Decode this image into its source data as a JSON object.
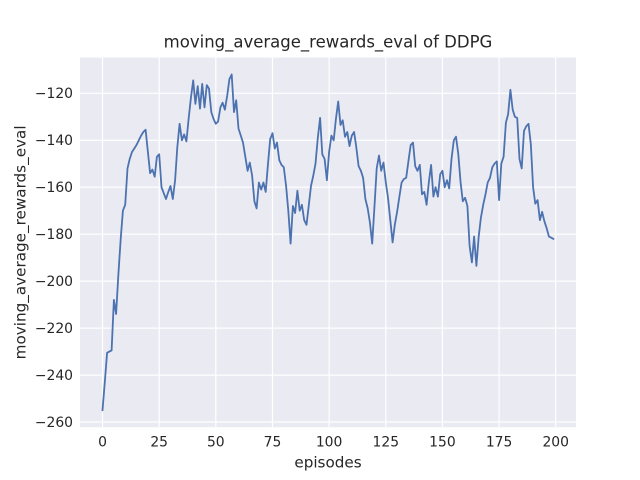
{
  "chart_data": {
    "type": "line",
    "title": "moving_average_rewards_eval of DDPG",
    "xlabel": "episodes",
    "ylabel": "moving_average_rewards_eval",
    "legend": "none",
    "grid": true,
    "xlim": [
      -9.95,
      208.95
    ],
    "ylim": [
      -262.2,
      -104.8
    ],
    "xticks": [
      0,
      25,
      50,
      75,
      100,
      125,
      150,
      175,
      200
    ],
    "yticks": [
      -260,
      -240,
      -220,
      -200,
      -180,
      -160,
      -140,
      -120
    ],
    "colors": {
      "figure_background": "#ffffff",
      "plot_background": "#eaeaf2",
      "grid": "#ffffff",
      "line": "#4c72b0",
      "text": "#262626"
    },
    "x_start": 0,
    "x_step": 1,
    "series": [
      {
        "name": "moving_average_rewards_eval",
        "values": [
          -255,
          -243,
          -230.5,
          -230,
          -229.5,
          -208,
          -214,
          -197,
          -182,
          -170,
          -167.5,
          -152,
          -148,
          -145,
          -143.5,
          -142,
          -140,
          -138,
          -136.5,
          -135.5,
          -145,
          -154,
          -152.5,
          -155.5,
          -147,
          -146,
          -160,
          -162.5,
          -165,
          -162,
          -159.5,
          -165,
          -157,
          -143,
          -133,
          -140,
          -137.5,
          -140.5,
          -131,
          -122,
          -114.5,
          -124.5,
          -117,
          -126.5,
          -116,
          -126,
          -116.5,
          -118,
          -128,
          -131,
          -133,
          -132,
          -126,
          -124,
          -127,
          -121,
          -114,
          -112,
          -128,
          -123,
          -135,
          -138,
          -141,
          -147,
          -153,
          -149.5,
          -155,
          -166,
          -169,
          -158,
          -161,
          -158,
          -162,
          -150,
          -139.5,
          -137,
          -143.5,
          -141,
          -148.5,
          -150.5,
          -151.5,
          -159.5,
          -170,
          -184,
          -168,
          -171,
          -161.5,
          -170,
          -167.5,
          -174,
          -176,
          -168,
          -159.5,
          -155,
          -150,
          -139,
          -130.5,
          -146,
          -148,
          -157,
          -145,
          -138,
          -140,
          -131,
          -123.5,
          -133.5,
          -131.5,
          -138.5,
          -136.5,
          -142.5,
          -138,
          -136.5,
          -143,
          -151,
          -153,
          -156,
          -165,
          -169,
          -175,
          -184,
          -168,
          -152,
          -146.5,
          -153,
          -149.5,
          -158,
          -164.5,
          -174,
          -183.5,
          -176,
          -170.5,
          -164,
          -158,
          -156.5,
          -156,
          -149,
          -142,
          -141,
          -151,
          -153,
          -150.5,
          -163,
          -162,
          -167.5,
          -158,
          -150.5,
          -164,
          -160,
          -164,
          -154.5,
          -153,
          -160,
          -157,
          -160.5,
          -148,
          -140,
          -138.5,
          -146,
          -158,
          -166,
          -164.5,
          -168,
          -185,
          -192,
          -181,
          -193.5,
          -181,
          -173,
          -167.5,
          -163,
          -158,
          -156,
          -151.5,
          -150,
          -149,
          -165.5,
          -150,
          -147,
          -132.5,
          -129,
          -118.5,
          -127,
          -130,
          -130.5,
          -148,
          -152,
          -136,
          -134,
          -133,
          -141.5,
          -160,
          -167,
          -165.5,
          -174,
          -170.5,
          -174.5,
          -177.5,
          -181,
          -181.5,
          -182
        ]
      }
    ]
  }
}
